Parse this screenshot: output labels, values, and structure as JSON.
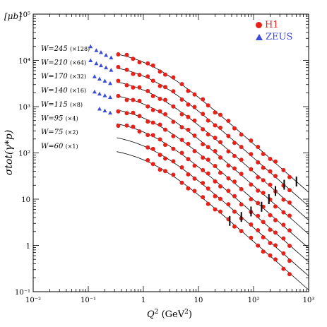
{
  "chart_data": {
    "type": "scatter",
    "xscale": "log",
    "yscale": "log",
    "xlim": [
      0.01,
      1000
    ],
    "ylim": [
      0.1,
      100000
    ],
    "xlabel_main": "Q",
    "xlabel_sup": "2",
    "xlabel_unit": "(GeV",
    "xlabel_unit_sup": "2",
    "xlabel_close": ")",
    "ylabel": "σtot(γ*p)",
    "y_unit": "[μb]",
    "x_tick_labels": [
      "10⁻²",
      "10⁻¹",
      "1",
      "10",
      "10²",
      "10³"
    ],
    "y_tick_labels": [
      "10⁻¹",
      "1",
      "10",
      "10²",
      "10³",
      "10⁴",
      "10⁵"
    ],
    "legend": [
      {
        "name": "H1",
        "marker": "circle",
        "color": "#e8201a"
      },
      {
        "name": "ZEUS",
        "marker": "triangle",
        "color": "#3b4cd6"
      }
    ],
    "curves": [
      {
        "label": "W=245",
        "scale": "(×128)",
        "y_lowQ2": 18000,
        "Q2_at_half": 1.1
      },
      {
        "label": "W=210",
        "scale": "(×64)",
        "y_lowQ2": 9000,
        "Q2_at_half": 1.1
      },
      {
        "label": "W=170",
        "scale": "(×32)",
        "y_lowQ2": 4500,
        "Q2_at_half": 1.1
      },
      {
        "label": "W=140",
        "scale": "(×16)",
        "y_lowQ2": 2250,
        "Q2_at_half": 1.1
      },
      {
        "label": "W=115",
        "scale": "(×8)",
        "y_lowQ2": 1120,
        "Q2_at_half": 1.1
      },
      {
        "label": "W=95",
        "scale": "(×4)",
        "y_lowQ2": 560,
        "Q2_at_half": 1.1
      },
      {
        "label": "W=75",
        "scale": "(×2)",
        "y_lowQ2": 280,
        "Q2_at_half": 1.1
      },
      {
        "label": "W=60",
        "scale": "(×1)",
        "y_lowQ2": 140,
        "Q2_at_half": 1.1
      }
    ],
    "h1_q2": [
      0.35,
      0.5,
      0.65,
      0.85,
      1.2,
      1.5,
      2.0,
      2.5,
      3.5,
      5.0,
      6.5,
      8.5,
      12,
      15,
      20,
      25,
      35,
      45,
      60,
      90,
      120,
      150,
      200,
      250,
      350,
      450
    ],
    "zeus_points": [
      [
        0.11,
        20000
      ],
      [
        0.14,
        16500
      ],
      [
        0.17,
        15000
      ],
      [
        0.21,
        13000
      ],
      [
        0.26,
        11500
      ],
      [
        0.11,
        10000
      ],
      [
        0.14,
        8600
      ],
      [
        0.17,
        7800
      ],
      [
        0.21,
        7000
      ],
      [
        0.26,
        6200
      ],
      [
        0.13,
        4500
      ],
      [
        0.16,
        4000
      ],
      [
        0.2,
        3600
      ],
      [
        0.25,
        3200
      ],
      [
        0.13,
        2100
      ],
      [
        0.16,
        1900
      ],
      [
        0.2,
        1750
      ],
      [
        0.25,
        1600
      ],
      [
        0.16,
        900
      ],
      [
        0.2,
        820
      ],
      [
        0.25,
        740
      ]
    ],
    "kinematic_bars_q2": [
      37,
      60,
      90,
      140,
      190,
      250,
      360,
      600
    ]
  }
}
